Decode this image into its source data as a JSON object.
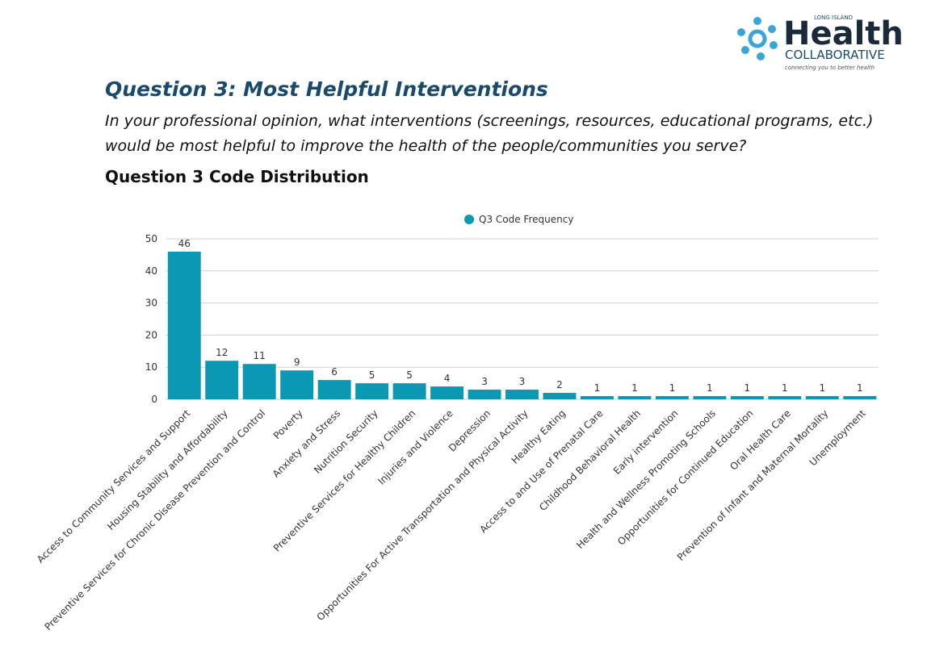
{
  "header": {
    "logo": {
      "small": "LONG ISLAND",
      "big": "Health",
      "sub": "COLLABORATIVE",
      "tagline": "connecting you to better health"
    }
  },
  "heading": "Question 3: Most Helpful Interventions",
  "question": [
    "In your professional opinion, what interventions (screenings, resources, educational programs, etc.)",
    "would be most helpful to improve the health of the people/communities you serve?"
  ],
  "section_title": "Question 3 Code Distribution",
  "chart_data": {
    "type": "bar",
    "categories": [
      "Access to Community Services and Support",
      "Housing Stability and Affordability",
      "Preventive Services for Chronic Disease Prevention and Control",
      "Poverty",
      "Anxiety and Stress",
      "Nutrition Security",
      "Preventive Services for Healthy Children",
      "Injuries and Violence",
      "Depression",
      "Opportunities For Active Transportation and Physical Activity",
      "Healthy Eating",
      "Access to and Use of Prenatal Care",
      "Childhood Behavioral Health",
      "Early intervention",
      "Health and Wellness Promoting Schools",
      "Opportunities for Continued Education",
      "Oral Health Care",
      "Prevention of Infant and Maternal Mortality",
      "Unemployment"
    ],
    "series": [
      {
        "name": "Q3 Code Frequency",
        "color": "#0b98b2",
        "values": [
          46,
          12,
          11,
          9,
          6,
          5,
          5,
          4,
          3,
          3,
          2,
          1,
          1,
          1,
          1,
          1,
          1,
          1,
          1
        ]
      }
    ],
    "ylim": [
      0,
      50
    ],
    "yticks": [
      0,
      10,
      20,
      30,
      40,
      50
    ],
    "grid": true,
    "legend": "top"
  }
}
